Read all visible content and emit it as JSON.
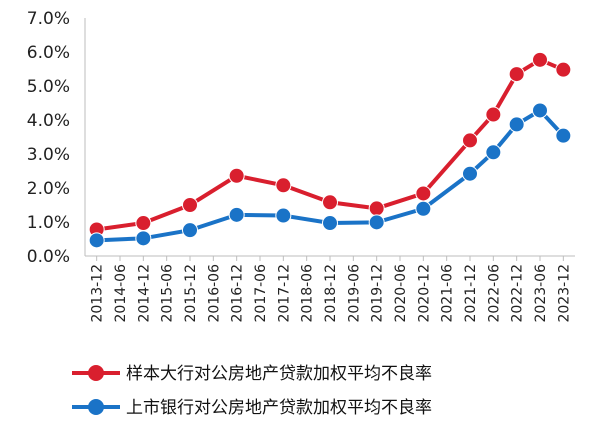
{
  "chart_data": {
    "type": "line",
    "title": "",
    "xlabel": "",
    "ylabel": "",
    "ylim": [
      0,
      7
    ],
    "yticks": [
      "0.0%",
      "1.0%",
      "2.0%",
      "3.0%",
      "4.0%",
      "5.0%",
      "6.0%",
      "7.0%"
    ],
    "categories": [
      "2013-12",
      "2014-06",
      "2014-12",
      "2015-06",
      "2015-12",
      "2016-06",
      "2016-12",
      "2017-06",
      "2017-12",
      "2018-06",
      "2018-12",
      "2019-06",
      "2019-12",
      "2020-06",
      "2020-12",
      "2021-06",
      "2021-12",
      "2022-06",
      "2022-12",
      "2023-06",
      "2023-12"
    ],
    "grid": false,
    "legend_position": "bottom",
    "series": [
      {
        "name": "样本大行对公房地产贷款加权平均不良率",
        "color": "#d91f2e",
        "points": [
          {
            "x": "2013-12",
            "y": 0.78
          },
          {
            "x": "2014-12",
            "y": 0.97
          },
          {
            "x": "2015-12",
            "y": 1.5
          },
          {
            "x": "2016-12",
            "y": 2.36
          },
          {
            "x": "2017-12",
            "y": 2.08
          },
          {
            "x": "2018-12",
            "y": 1.58
          },
          {
            "x": "2019-12",
            "y": 1.4
          },
          {
            "x": "2020-12",
            "y": 1.84
          },
          {
            "x": "2021-12",
            "y": 3.4
          },
          {
            "x": "2022-06",
            "y": 4.16
          },
          {
            "x": "2022-12",
            "y": 5.35
          },
          {
            "x": "2023-06",
            "y": 5.77
          },
          {
            "x": "2023-12",
            "y": 5.48
          }
        ]
      },
      {
        "name": "上市银行对公房地产贷款加权平均不良率",
        "color": "#1a73c7",
        "points": [
          {
            "x": "2013-12",
            "y": 0.46
          },
          {
            "x": "2014-12",
            "y": 0.52
          },
          {
            "x": "2015-12",
            "y": 0.76
          },
          {
            "x": "2016-12",
            "y": 1.21
          },
          {
            "x": "2017-12",
            "y": 1.19
          },
          {
            "x": "2018-12",
            "y": 0.97
          },
          {
            "x": "2019-12",
            "y": 0.99
          },
          {
            "x": "2020-12",
            "y": 1.39
          },
          {
            "x": "2021-12",
            "y": 2.42
          },
          {
            "x": "2022-06",
            "y": 3.05
          },
          {
            "x": "2022-12",
            "y": 3.87
          },
          {
            "x": "2023-06",
            "y": 4.28
          },
          {
            "x": "2023-12",
            "y": 3.54
          }
        ]
      }
    ]
  }
}
